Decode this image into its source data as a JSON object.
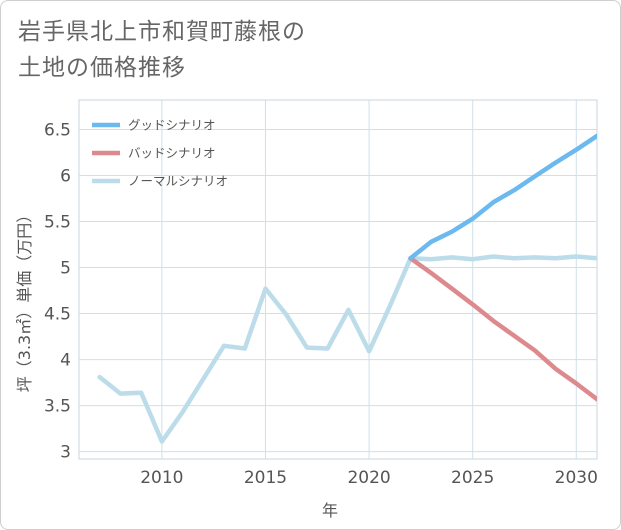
{
  "title_lines": [
    "岩手県北上市和賀町藤根の",
    "土地の価格推移"
  ],
  "chart_data": {
    "type": "line",
    "xlabel": "年",
    "ylabel": "坪（3.3㎡）単価（万円）",
    "xlim": [
      2006,
      2031
    ],
    "ylim": [
      2.92,
      6.82
    ],
    "x_ticks": [
      2010,
      2015,
      2020,
      2025,
      2030
    ],
    "y_ticks": [
      3,
      3.5,
      4,
      4.5,
      5,
      5.5,
      6,
      6.5
    ],
    "y_tick_labels": [
      "3",
      "3.5",
      "4",
      "4.5",
      "5",
      "5.5",
      "6",
      "6.5"
    ],
    "grid": true,
    "legend_position": "top-left",
    "series": [
      {
        "name": "グッドシナリオ",
        "color": "#6cb9ef",
        "x": [
          2022,
          2023,
          2024,
          2025,
          2026,
          2027,
          2028,
          2029,
          2030,
          2031
        ],
        "y": [
          5.1,
          5.28,
          5.39,
          5.53,
          5.71,
          5.84,
          5.99,
          6.14,
          6.28,
          6.43
        ]
      },
      {
        "name": "バッドシナリオ",
        "color": "#dd8a8f",
        "x": [
          2022,
          2023,
          2024,
          2025,
          2026,
          2027,
          2028,
          2029,
          2030,
          2031
        ],
        "y": [
          5.1,
          4.94,
          4.77,
          4.6,
          4.42,
          4.26,
          4.1,
          3.9,
          3.74,
          3.57
        ]
      },
      {
        "name": "ノーマルシナリオ",
        "color": "#bcdcea",
        "x": [
          2007,
          2008,
          2009,
          2010,
          2011,
          2012,
          2013,
          2014,
          2015,
          2016,
          2017,
          2018,
          2019,
          2020,
          2021,
          2022,
          2023,
          2024,
          2025,
          2026,
          2027,
          2028,
          2029,
          2030,
          2031
        ],
        "y": [
          3.81,
          3.63,
          3.64,
          3.11,
          3.43,
          3.79,
          4.15,
          4.12,
          4.77,
          4.49,
          4.13,
          4.12,
          4.54,
          4.09,
          4.58,
          5.1,
          5.09,
          5.11,
          5.09,
          5.12,
          5.1,
          5.11,
          5.1,
          5.12,
          5.1
        ]
      }
    ]
  }
}
